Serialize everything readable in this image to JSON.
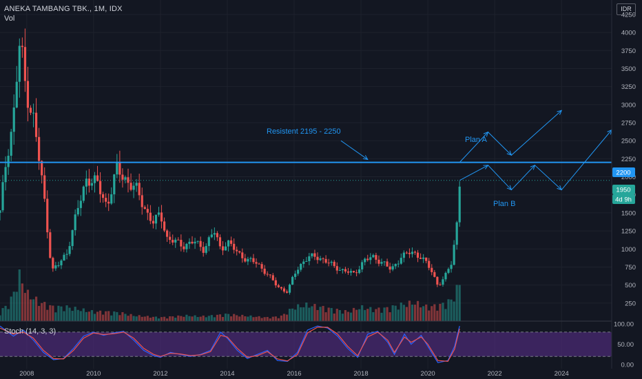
{
  "header": {
    "symbol": "ANEKA TAMBANG TBK., 1M, IDX",
    "volume_label": "Vol"
  },
  "currency_badge": "IDR",
  "stoch_label": "Stoch (14, 3, 3)",
  "price_tags": {
    "line": "2200",
    "last": "1950",
    "countdown": "4d 9h"
  },
  "annotations": {
    "resistance": "Resistent 2195 - 2250",
    "plan_a": "Plan A",
    "plan_b": "Plan B"
  },
  "colors": {
    "up": "#26a69a",
    "down": "#ef5350",
    "line": "#2196f3",
    "stoch_k": "#2962ff",
    "stoch_d": "#ef5350",
    "stoch_band": "#4a2a73",
    "background": "#131722"
  },
  "chart_data": [
    {
      "type": "candlestick",
      "title": "ANEKA TAMBANG TBK., 1M, IDX",
      "x_ticks": [
        "2008",
        "2010",
        "2012",
        "2014",
        "2016",
        "2018",
        "2020",
        "2022",
        "2024"
      ],
      "y_ticks": [
        "250",
        "500",
        "750",
        "1000",
        "1250",
        "1500",
        "1750",
        "2000",
        "2250",
        "2500",
        "2750",
        "3000",
        "3250",
        "3500",
        "3750",
        "4000",
        "4250"
      ],
      "ylim": [
        0,
        4450
      ],
      "xlim": [
        2007.2,
        2025.5
      ],
      "resistance_line": 2200,
      "last_price": 1950,
      "price_path": [
        [
          2007.2,
          1500
        ],
        [
          2007.4,
          2300
        ],
        [
          2007.6,
          2800
        ],
        [
          2007.8,
          3900
        ],
        [
          2007.95,
          3300
        ],
        [
          2008.2,
          2800
        ],
        [
          2008.5,
          1800
        ],
        [
          2008.75,
          700
        ],
        [
          2008.95,
          780
        ],
        [
          2009.2,
          950
        ],
        [
          2009.5,
          1500
        ],
        [
          2009.8,
          2000
        ],
        [
          2010.1,
          1900
        ],
        [
          2010.4,
          1600
        ],
        [
          2010.7,
          2100
        ],
        [
          2011.0,
          1950
        ],
        [
          2011.3,
          1800
        ],
        [
          2011.6,
          1500
        ],
        [
          2011.8,
          1350
        ],
        [
          2012.0,
          1500
        ],
        [
          2012.2,
          1150
        ],
        [
          2012.4,
          1100
        ],
        [
          2012.7,
          1050
        ],
        [
          2013.0,
          1100
        ],
        [
          2013.3,
          1000
        ],
        [
          2013.6,
          1250
        ],
        [
          2013.8,
          1000
        ],
        [
          2014.0,
          1100
        ],
        [
          2014.3,
          950
        ],
        [
          2014.6,
          850
        ],
        [
          2014.9,
          800
        ],
        [
          2015.2,
          650
        ],
        [
          2015.5,
          480
        ],
        [
          2015.8,
          400
        ],
        [
          2016.0,
          650
        ],
        [
          2016.3,
          850
        ],
        [
          2016.6,
          900
        ],
        [
          2016.9,
          850
        ],
        [
          2017.2,
          750
        ],
        [
          2017.5,
          700
        ],
        [
          2017.8,
          650
        ],
        [
          2018.1,
          850
        ],
        [
          2018.4,
          880
        ],
        [
          2018.7,
          800
        ],
        [
          2018.9,
          700
        ],
        [
          2019.2,
          900
        ],
        [
          2019.5,
          950
        ],
        [
          2019.8,
          900
        ],
        [
          2020.1,
          700
        ],
        [
          2020.3,
          500
        ],
        [
          2020.5,
          600
        ],
        [
          2020.7,
          800
        ],
        [
          2020.85,
          1250
        ],
        [
          2020.95,
          1950
        ]
      ],
      "volume": [
        [
          2007.2,
          0.2
        ],
        [
          2007.5,
          0.4
        ],
        [
          2007.8,
          1.0
        ],
        [
          2008.0,
          0.6
        ],
        [
          2008.4,
          0.4
        ],
        [
          2008.8,
          0.3
        ],
        [
          2009.2,
          0.3
        ],
        [
          2009.6,
          0.25
        ],
        [
          2010.0,
          0.2
        ],
        [
          2010.4,
          0.2
        ],
        [
          2010.8,
          0.18
        ],
        [
          2011.2,
          0.12
        ],
        [
          2011.6,
          0.1
        ],
        [
          2012.0,
          0.08
        ],
        [
          2012.4,
          0.1
        ],
        [
          2012.8,
          0.12
        ],
        [
          2013.2,
          0.1
        ],
        [
          2013.6,
          0.12
        ],
        [
          2014.0,
          0.15
        ],
        [
          2014.4,
          0.12
        ],
        [
          2014.8,
          0.1
        ],
        [
          2015.2,
          0.08
        ],
        [
          2015.6,
          0.1
        ],
        [
          2016.0,
          0.3
        ],
        [
          2016.4,
          0.35
        ],
        [
          2016.8,
          0.3
        ],
        [
          2017.2,
          0.25
        ],
        [
          2017.6,
          0.2
        ],
        [
          2018.0,
          0.3
        ],
        [
          2018.4,
          0.25
        ],
        [
          2018.8,
          0.28
        ],
        [
          2019.2,
          0.35
        ],
        [
          2019.6,
          0.4
        ],
        [
          2020.0,
          0.3
        ],
        [
          2020.4,
          0.35
        ],
        [
          2020.7,
          0.45
        ],
        [
          2020.95,
          0.8
        ]
      ],
      "projections": {
        "plan_a": [
          [
            2020.95,
            2200
          ],
          [
            2021.8,
            2620
          ],
          [
            2022.5,
            2300
          ],
          [
            2024.0,
            2920
          ]
        ],
        "plan_b": [
          [
            2020.95,
            1950
          ],
          [
            2021.8,
            2160
          ],
          [
            2022.5,
            1820
          ],
          [
            2023.2,
            2160
          ],
          [
            2024.0,
            1820
          ],
          [
            2025.5,
            2650
          ]
        ],
        "resistance_arrow": [
          [
            2017.4,
            2500
          ],
          [
            2018.2,
            2240
          ]
        ]
      }
    },
    {
      "type": "line",
      "title": "Stoch (14, 3, 3)",
      "y_ticks": [
        "0.00",
        "50.00",
        "100.00"
      ],
      "ylim": [
        -10,
        107
      ],
      "band": [
        20,
        80
      ],
      "series": [
        {
          "name": "%K",
          "points": [
            [
              2007.2,
              95
            ],
            [
              2007.6,
              70
            ],
            [
              2007.9,
              85
            ],
            [
              2008.2,
              60
            ],
            [
              2008.5,
              30
            ],
            [
              2008.8,
              12
            ],
            [
              2009.1,
              15
            ],
            [
              2009.4,
              40
            ],
            [
              2009.7,
              70
            ],
            [
              2010.0,
              80
            ],
            [
              2010.3,
              72
            ],
            [
              2010.6,
              78
            ],
            [
              2010.9,
              82
            ],
            [
              2011.2,
              60
            ],
            [
              2011.5,
              35
            ],
            [
              2011.8,
              22
            ],
            [
              2012.0,
              18
            ],
            [
              2012.3,
              30
            ],
            [
              2012.6,
              25
            ],
            [
              2012.9,
              20
            ],
            [
              2013.2,
              25
            ],
            [
              2013.5,
              35
            ],
            [
              2013.8,
              80
            ],
            [
              2014.0,
              65
            ],
            [
              2014.3,
              35
            ],
            [
              2014.6,
              15
            ],
            [
              2014.9,
              25
            ],
            [
              2015.2,
              35
            ],
            [
              2015.5,
              10
            ],
            [
              2015.8,
              8
            ],
            [
              2016.1,
              30
            ],
            [
              2016.4,
              85
            ],
            [
              2016.7,
              95
            ],
            [
              2017.0,
              90
            ],
            [
              2017.3,
              70
            ],
            [
              2017.6,
              40
            ],
            [
              2017.9,
              18
            ],
            [
              2018.2,
              75
            ],
            [
              2018.5,
              82
            ],
            [
              2018.8,
              55
            ],
            [
              2019.0,
              25
            ],
            [
              2019.3,
              75
            ],
            [
              2019.5,
              50
            ],
            [
              2019.8,
              72
            ],
            [
              2020.0,
              45
            ],
            [
              2020.3,
              5
            ],
            [
              2020.6,
              10
            ],
            [
              2020.8,
              45
            ],
            [
              2020.95,
              95
            ]
          ]
        },
        {
          "name": "%D",
          "points": [
            [
              2007.2,
              90
            ],
            [
              2007.6,
              75
            ],
            [
              2007.9,
              80
            ],
            [
              2008.2,
              65
            ],
            [
              2008.5,
              35
            ],
            [
              2008.8,
              15
            ],
            [
              2009.1,
              14
            ],
            [
              2009.4,
              35
            ],
            [
              2009.7,
              65
            ],
            [
              2010.0,
              78
            ],
            [
              2010.3,
              74
            ],
            [
              2010.6,
              76
            ],
            [
              2010.9,
              80
            ],
            [
              2011.2,
              65
            ],
            [
              2011.5,
              40
            ],
            [
              2011.8,
              25
            ],
            [
              2012.0,
              20
            ],
            [
              2012.3,
              28
            ],
            [
              2012.6,
              26
            ],
            [
              2012.9,
              22
            ],
            [
              2013.2,
              24
            ],
            [
              2013.5,
              32
            ],
            [
              2013.8,
              72
            ],
            [
              2014.0,
              68
            ],
            [
              2014.3,
              40
            ],
            [
              2014.6,
              18
            ],
            [
              2014.9,
              22
            ],
            [
              2015.2,
              32
            ],
            [
              2015.5,
              14
            ],
            [
              2015.8,
              9
            ],
            [
              2016.1,
              25
            ],
            [
              2016.4,
              78
            ],
            [
              2016.7,
              92
            ],
            [
              2017.0,
              92
            ],
            [
              2017.3,
              75
            ],
            [
              2017.6,
              45
            ],
            [
              2017.9,
              22
            ],
            [
              2018.2,
              68
            ],
            [
              2018.5,
              80
            ],
            [
              2018.8,
              60
            ],
            [
              2019.0,
              30
            ],
            [
              2019.3,
              68
            ],
            [
              2019.5,
              55
            ],
            [
              2019.8,
              68
            ],
            [
              2020.0,
              50
            ],
            [
              2020.3,
              10
            ],
            [
              2020.6,
              8
            ],
            [
              2020.8,
              38
            ],
            [
              2020.95,
              88
            ]
          ]
        }
      ]
    }
  ]
}
